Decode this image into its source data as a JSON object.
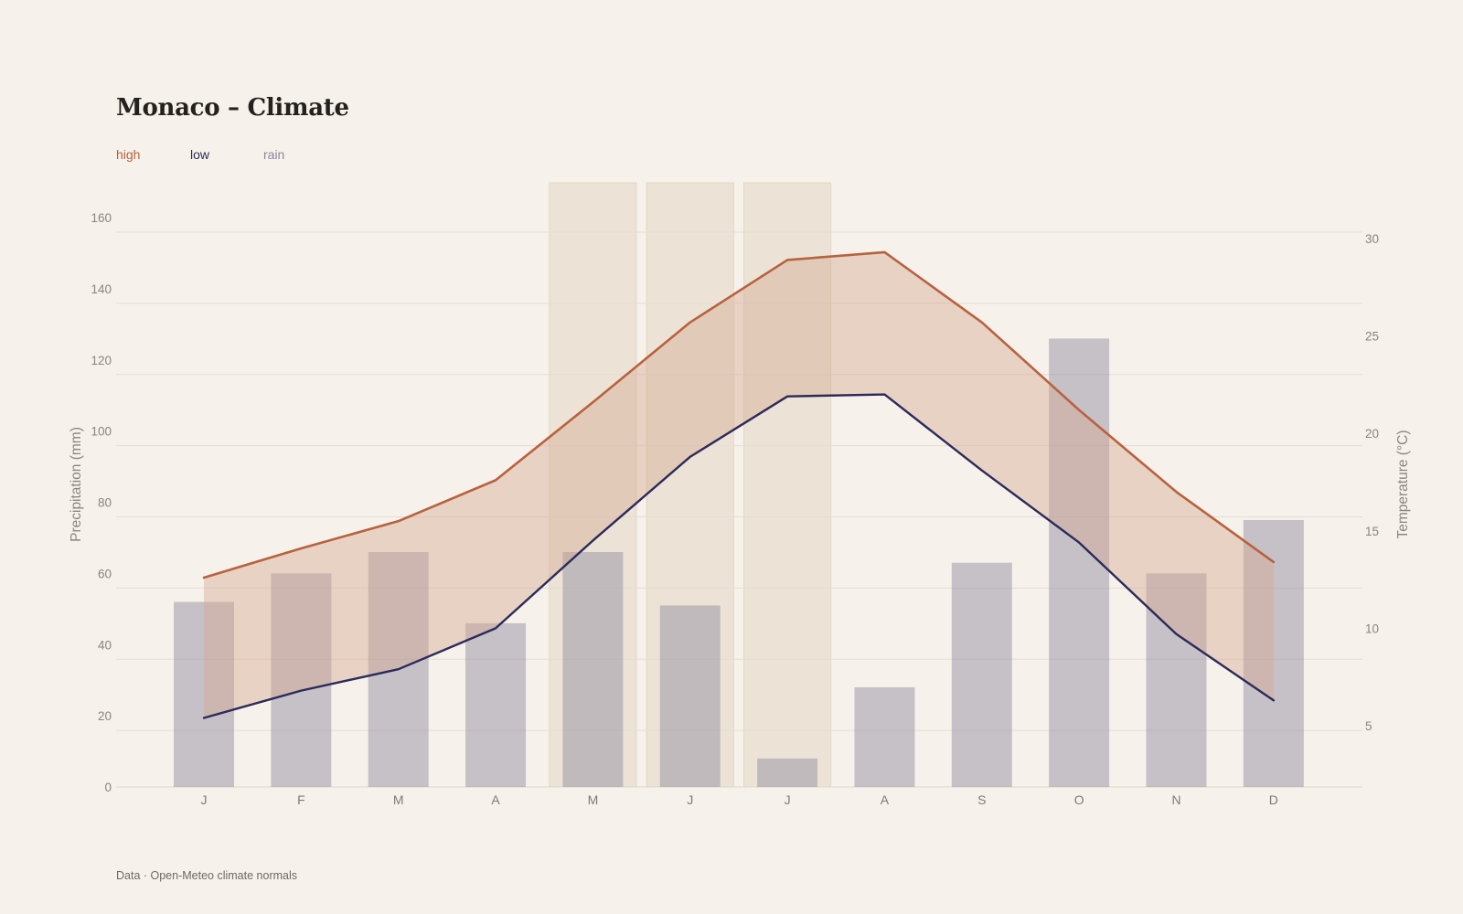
{
  "page": {
    "title": "Monaco – Climate",
    "footer": "Data · Open-Meteo climate normals",
    "background": "#f6f1ea"
  },
  "legend": {
    "high": "high",
    "low": "low",
    "rain": "rain"
  },
  "colors": {
    "high": "#b8623f",
    "low": "#2b2a5a",
    "rain": "#8c879e",
    "band": "#d4a58b",
    "highlight": "#ece3d6",
    "grid": "#e3ddd4",
    "tick": "#8a857e"
  },
  "chart_data": {
    "type": "bar+line",
    "title": "Monaco – Climate",
    "categories": [
      "J",
      "F",
      "M",
      "A",
      "M",
      "J",
      "J",
      "A",
      "S",
      "O",
      "N",
      "D"
    ],
    "highlighted_months": [
      4,
      5,
      6
    ],
    "series": [
      {
        "name": "rain",
        "type": "bar",
        "axis": "left",
        "values": [
          52,
          60,
          66,
          46,
          66,
          51,
          8,
          28,
          63,
          126,
          60,
          75
        ]
      },
      {
        "name": "high",
        "type": "line",
        "axis": "right",
        "values": [
          12.6,
          14.1,
          15.5,
          17.6,
          21.6,
          25.7,
          28.9,
          29.3,
          25.7,
          21.2,
          17.0,
          13.4
        ]
      },
      {
        "name": "low",
        "type": "line",
        "axis": "right",
        "values": [
          5.4,
          6.8,
          7.9,
          10.0,
          14.5,
          18.8,
          21.9,
          22.0,
          18.1,
          14.4,
          9.7,
          6.3
        ]
      }
    ],
    "band_between": [
      "high",
      "low"
    ],
    "y_left": {
      "label": "Precipitation (mm)",
      "ticks": [
        0,
        20,
        40,
        60,
        80,
        100,
        120,
        140,
        160
      ],
      "range": [
        0,
        160
      ]
    },
    "y_right": {
      "label": "Temperature (°C)",
      "ticks": [
        5,
        10,
        15,
        20,
        25,
        30
      ],
      "range": [
        2,
        31
      ]
    },
    "grid": true,
    "legend_position": "top-left"
  }
}
